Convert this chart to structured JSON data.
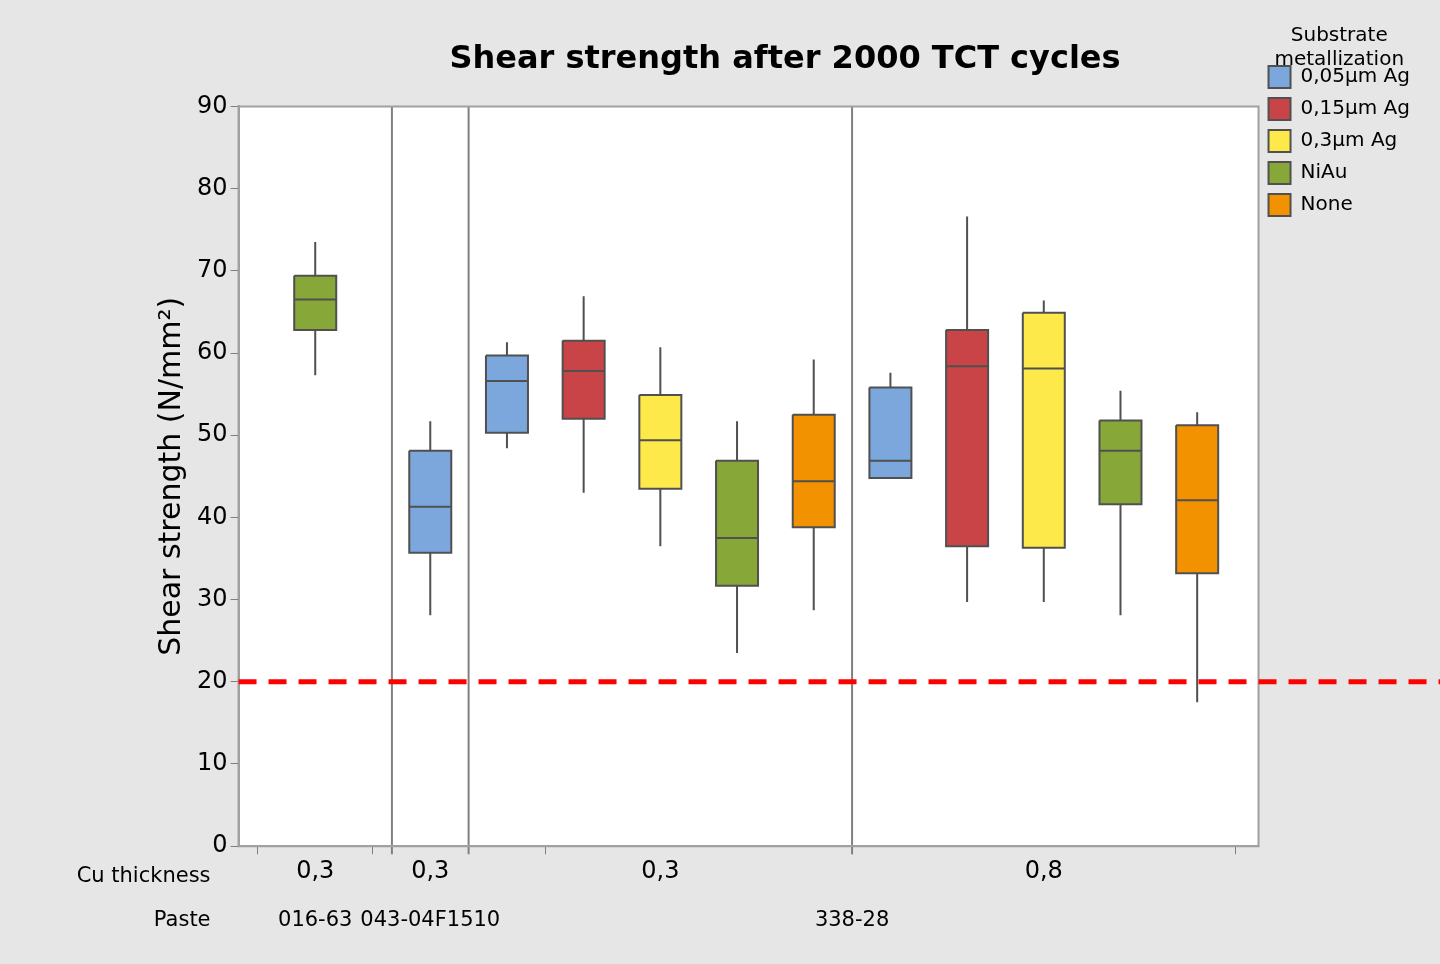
{
  "chart_data": {
    "type": "box",
    "title": "Shear strength after 2000 TCT cycles",
    "ylabel": "Shear strength (N/mm²)",
    "legend_title": "Substrate metallization",
    "categories": [
      "0,3",
      "0,3",
      null,
      null,
      "0,3",
      null,
      null,
      null,
      null,
      "0,8",
      null,
      null
    ],
    "series": [
      {
        "name": "0,05µm Ag",
        "color": "#7ba7dc",
        "boxes": [
          null,
          {
            "low": 28.1,
            "q1": 35.7,
            "median": 41.3,
            "q3": 48.1,
            "high": 51.7
          },
          {
            "low": 48.4,
            "q1": 50.3,
            "median": 56.6,
            "q3": 59.7,
            "high": 61.3
          },
          null,
          null,
          null,
          null,
          {
            "low": 44.8,
            "q1": 44.8,
            "median": 46.9,
            "q3": 55.8,
            "high": 57.6
          },
          null,
          null,
          null,
          null
        ]
      },
      {
        "name": "0,15µm Ag",
        "color": "#c94446",
        "boxes": [
          null,
          null,
          null,
          {
            "low": 43.0,
            "q1": 52.0,
            "median": 57.8,
            "q3": 61.5,
            "high": 66.9
          },
          null,
          null,
          null,
          null,
          {
            "low": 29.7,
            "q1": 36.5,
            "median": 58.4,
            "q3": 62.8,
            "high": 76.6
          },
          null,
          null,
          null
        ]
      },
      {
        "name": "0,3µm Ag",
        "color": "#fde94a",
        "boxes": [
          null,
          null,
          null,
          null,
          {
            "low": 36.5,
            "q1": 43.5,
            "median": 49.4,
            "q3": 54.9,
            "high": 60.7
          },
          null,
          null,
          null,
          null,
          {
            "low": 29.7,
            "q1": 36.3,
            "median": 58.1,
            "q3": 64.9,
            "high": 66.4
          },
          null,
          null
        ]
      },
      {
        "name": "NiAu",
        "color": "#87a738",
        "boxes": [
          {
            "low": 57.3,
            "q1": 62.8,
            "median": 66.5,
            "q3": 69.4,
            "high": 73.5
          },
          null,
          null,
          null,
          null,
          {
            "low": 23.5,
            "q1": 31.7,
            "median": 37.5,
            "q3": 46.9,
            "high": 51.7
          },
          null,
          null,
          null,
          null,
          {
            "low": 28.1,
            "q1": 41.6,
            "median": 48.1,
            "q3": 51.8,
            "high": 55.4
          },
          null
        ]
      },
      {
        "name": "None",
        "color": "#f39200",
        "boxes": [
          null,
          null,
          null,
          null,
          null,
          null,
          {
            "low": 28.7,
            "q1": 38.8,
            "median": 44.4,
            "q3": 52.5,
            "high": 59.2
          },
          null,
          null,
          null,
          null,
          {
            "low": 17.5,
            "q1": 33.2,
            "median": 42.1,
            "q3": 51.2,
            "high": 52.8
          }
        ]
      }
    ],
    "ylim": [
      0,
      90
    ],
    "yticks": [
      0,
      10,
      20,
      30,
      40,
      50,
      60,
      70,
      80,
      90
    ],
    "grid": false,
    "legend": "top right",
    "ref_lines": [
      {
        "axis": "y",
        "value": 20,
        "color": "#ff0000",
        "line_style": "dashed"
      }
    ],
    "annotations": [
      "Cu thickness",
      "Paste",
      "016-63",
      "043-04F1510",
      "338-28"
    ]
  }
}
